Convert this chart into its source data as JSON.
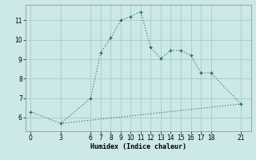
{
  "xlabel": "Humidex (Indice chaleur)",
  "background_color": "#cce8e8",
  "grid_color": "#aacfcf",
  "line_color": "#1a6b60",
  "curve1_x": [
    0,
    3,
    6,
    7,
    8,
    9,
    10,
    11,
    12,
    13,
    14,
    15,
    16,
    17,
    18,
    21
  ],
  "curve1_y": [
    6.3,
    5.7,
    7.0,
    9.35,
    10.1,
    11.0,
    11.2,
    11.45,
    9.6,
    9.05,
    9.45,
    9.45,
    9.2,
    8.3,
    8.3,
    6.7
  ],
  "curve2_x": [
    3,
    21
  ],
  "curve2_y": [
    5.7,
    6.7
  ],
  "xticks": [
    0,
    3,
    6,
    7,
    8,
    9,
    10,
    11,
    12,
    13,
    14,
    15,
    16,
    17,
    18,
    21
  ],
  "yticks": [
    6,
    7,
    8,
    9,
    10,
    11
  ],
  "ylim": [
    5.3,
    11.8
  ],
  "xlim": [
    -0.5,
    22.0
  ]
}
